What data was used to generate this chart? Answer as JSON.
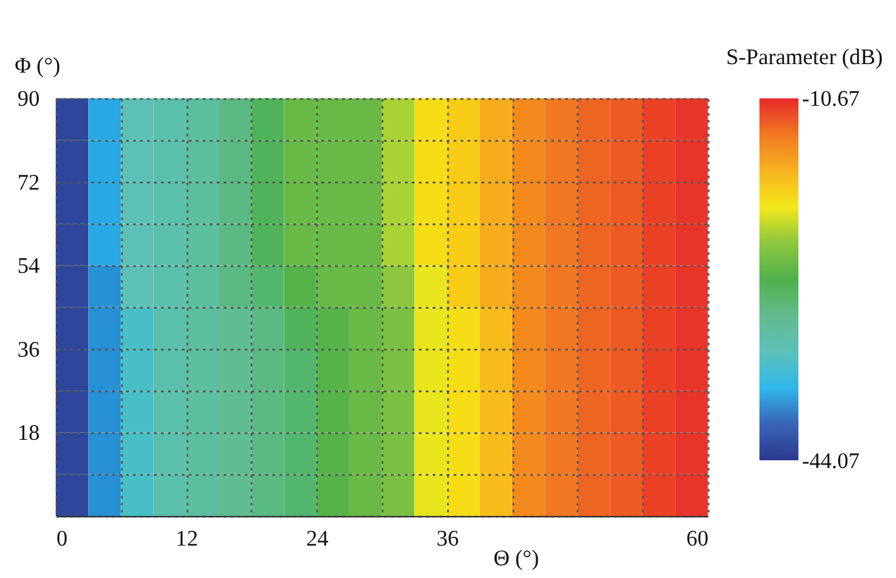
{
  "chart_data": {
    "type": "heatmap",
    "xlabel": "Θ (°)",
    "ylabel": "Φ (°)",
    "clabel": "S-Parameter (dB)",
    "x": [
      1.5,
      4.5,
      7.5,
      10.5,
      13.5,
      16.5,
      19.5,
      22.5,
      25.5,
      28.5,
      31.5,
      34.5,
      37.5,
      40.5,
      43.5,
      46.5,
      49.5,
      52.5,
      55.5,
      58.5
    ],
    "y": [
      85.5,
      76.5,
      67.5,
      58.5,
      49.5,
      40.5,
      31.5,
      22.5,
      13.5,
      4.5
    ],
    "cells": [
      [
        -43,
        -38,
        -34,
        -33,
        -32,
        -30,
        -28,
        -26,
        -26,
        -26,
        -23,
        -20,
        -19,
        -17,
        -15,
        -14,
        -13,
        -12.5,
        -11.5,
        -11
      ],
      [
        -43,
        -38,
        -34,
        -33,
        -32,
        -30,
        -28,
        -26,
        -26,
        -26,
        -23,
        -20,
        -19,
        -17,
        -15,
        -14,
        -13,
        -12.5,
        -11.5,
        -11
      ],
      [
        -43,
        -38,
        -34,
        -33,
        -32,
        -30,
        -28,
        -26,
        -26,
        -26,
        -23,
        -20,
        -19,
        -17,
        -15,
        -14,
        -13,
        -12.5,
        -11.5,
        -11
      ],
      [
        -43,
        -38,
        -34,
        -33,
        -32,
        -30,
        -28,
        -26,
        -26,
        -26,
        -23,
        -20,
        -19,
        -17,
        -15,
        -14,
        -13,
        -12.5,
        -11.5,
        -11
      ],
      [
        -43,
        -39,
        -34,
        -33,
        -32,
        -30,
        -29,
        -27,
        -26,
        -26,
        -24,
        -21,
        -19,
        -17,
        -15,
        -14,
        -13,
        -12.5,
        -11.5,
        -11
      ],
      [
        -43,
        -39,
        -35,
        -33,
        -32,
        -31,
        -30,
        -28,
        -27,
        -26,
        -25,
        -21,
        -20,
        -18,
        -15,
        -14,
        -13,
        -12.5,
        -11.5,
        -11
      ],
      [
        -43,
        -39,
        -35,
        -33,
        -32,
        -31,
        -30,
        -29,
        -27,
        -26,
        -25,
        -21,
        -20,
        -18,
        -15,
        -14,
        -13,
        -12.5,
        -11.5,
        -11
      ],
      [
        -43,
        -39,
        -35,
        -33,
        -32,
        -31,
        -30,
        -29,
        -27,
        -26,
        -25,
        -21,
        -20,
        -18,
        -15,
        -14,
        -13,
        -12.5,
        -11.5,
        -11
      ],
      [
        -43,
        -39,
        -35,
        -33,
        -32,
        -31,
        -30,
        -29,
        -27,
        -26,
        -25,
        -21,
        -20,
        -18,
        -15,
        -14,
        -13,
        -12.5,
        -11.5,
        -11
      ],
      [
        -43,
        -39,
        -35,
        -33,
        -32,
        -31,
        -30,
        -29,
        -27,
        -26,
        -25,
        -21,
        -20,
        -18,
        -15,
        -14,
        -13,
        -12.5,
        -11.5,
        -11
      ]
    ],
    "xlim": [
      0,
      60
    ],
    "xticks": [
      0,
      {
        "value": 6,
        "label": null
      },
      12,
      {
        "value": 18,
        "label": null
      },
      24,
      {
        "value": 30,
        "label": null
      },
      36,
      {
        "value": 42,
        "label": null
      },
      {
        "value": 48,
        "label": null
      },
      {
        "value": 54,
        "label": null
      },
      60
    ],
    "ylim": [
      0,
      90
    ],
    "yticks": [
      {
        "value": 0,
        "label": null
      },
      {
        "value": 9,
        "label": null
      },
      18,
      {
        "value": 27,
        "label": null
      },
      36,
      {
        "value": 45,
        "label": null
      },
      54,
      {
        "value": 63,
        "label": null
      },
      72,
      {
        "value": 81,
        "label": null
      },
      90
    ],
    "clim": [
      -44.07,
      -10.67
    ],
    "cticks": [
      -44.07,
      -10.67
    ],
    "grid": true
  }
}
